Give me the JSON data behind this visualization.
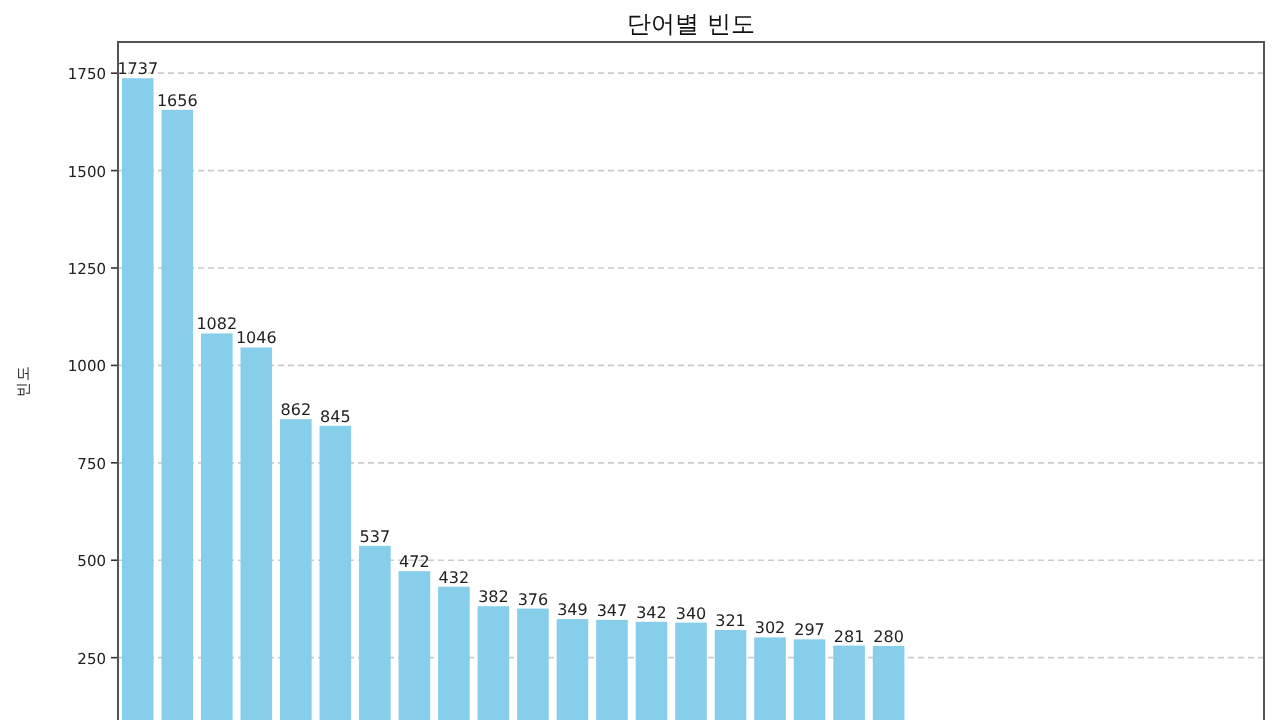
{
  "chart_data": {
    "type": "bar",
    "title": "단어별 빈도",
    "ylabel": "빈도",
    "categories": [
      null,
      null,
      null,
      null,
      null,
      null,
      null,
      null,
      null,
      null,
      null,
      null,
      null,
      null,
      null,
      null,
      null,
      null,
      null,
      null,
      null,
      null,
      null,
      null,
      null,
      null,
      null,
      null,
      null
    ],
    "values": [
      1737,
      1656,
      1082,
      1046,
      862,
      845,
      537,
      472,
      432,
      382,
      376,
      349,
      347,
      342,
      340,
      321,
      302,
      297,
      281,
      280,
      null,
      null,
      null,
      null,
      null,
      null,
      null,
      null,
      null
    ],
    "color": "#87ceeb",
    "ylim": [
      90,
      1830
    ],
    "yticks": [
      250,
      500,
      750,
      1000,
      1250,
      1500,
      1750
    ],
    "grid": "y",
    "data_labels": true
  }
}
